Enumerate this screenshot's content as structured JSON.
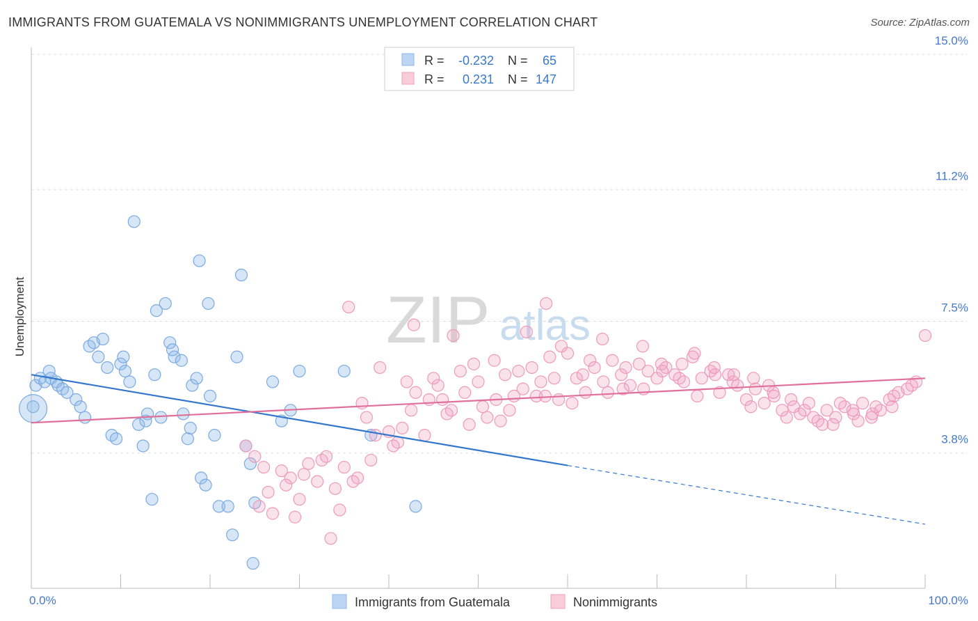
{
  "title": "IMMIGRANTS FROM GUATEMALA VS NONIMMIGRANTS UNEMPLOYMENT CORRELATION CHART",
  "source": "Source: ZipAtlas.com",
  "watermark": {
    "zip": "ZIP",
    "atlas": "atlas"
  },
  "colors": {
    "blue": "#8db8e8",
    "blue_line": "#3377cc",
    "pink": "#f0a0bc",
    "pink_line": "#e0709a",
    "axis_label": "#4477cc",
    "grid": "#dddddd"
  },
  "chart_data": {
    "type": "scatter",
    "xlabel": "",
    "ylabel": "Unemployment",
    "xlim": [
      0,
      100
    ],
    "ylim": [
      0,
      15
    ],
    "x_tick_labels": [
      "0.0%",
      "100.0%"
    ],
    "y_ticks": [
      {
        "value": 3.8,
        "label": "3.8%"
      },
      {
        "value": 7.5,
        "label": "7.5%"
      },
      {
        "value": 11.2,
        "label": "11.2%"
      },
      {
        "value": 15.0,
        "label": "15.0%"
      }
    ],
    "grid": true,
    "legend_position": "bottom",
    "stats_box": {
      "rows": [
        {
          "r_label": "R =",
          "r_value": "-0.232",
          "n_label": "N =",
          "n_value": "65"
        },
        {
          "r_label": "R =",
          "r_value": "0.231",
          "n_label": "N =",
          "n_value": "147"
        }
      ]
    },
    "series": [
      {
        "name": "Immigrants from Guatemala",
        "color": "#8db8e8",
        "trend": {
          "x0": 0,
          "y0": 6.0,
          "x1": 60,
          "y1": 3.45,
          "dashed_to_x": 100,
          "dashed_to_y": 1.8
        },
        "points": [
          [
            0.2,
            5.1
          ],
          [
            0.5,
            5.7
          ],
          [
            1,
            5.9
          ],
          [
            1.5,
            5.8
          ],
          [
            2,
            6.1
          ],
          [
            2.2,
            5.9
          ],
          [
            2.8,
            5.8
          ],
          [
            3,
            5.7
          ],
          [
            3.5,
            5.6
          ],
          [
            4,
            5.5
          ],
          [
            5,
            5.3
          ],
          [
            5.5,
            5.1
          ],
          [
            6,
            4.8
          ],
          [
            6.5,
            6.8
          ],
          [
            7,
            6.9
          ],
          [
            7.5,
            6.5
          ],
          [
            8,
            7.0
          ],
          [
            8.5,
            6.2
          ],
          [
            9,
            4.3
          ],
          [
            9.5,
            4.2
          ],
          [
            10,
            6.3
          ],
          [
            10.5,
            6.1
          ],
          [
            11,
            5.8
          ],
          [
            12,
            4.6
          ],
          [
            12.5,
            4.0
          ],
          [
            13,
            4.9
          ],
          [
            13.5,
            2.5
          ],
          [
            14,
            7.8
          ],
          [
            15,
            8.0
          ],
          [
            15.5,
            6.9
          ],
          [
            16,
            6.5
          ],
          [
            17,
            4.9
          ],
          [
            17.5,
            4.2
          ],
          [
            18,
            5.7
          ],
          [
            18.5,
            5.9
          ],
          [
            19,
            3.1
          ],
          [
            19.5,
            2.9
          ],
          [
            20,
            5.4
          ],
          [
            20.5,
            4.3
          ],
          [
            21,
            2.3
          ],
          [
            22,
            2.3
          ],
          [
            23,
            6.5
          ],
          [
            23.5,
            8.8
          ],
          [
            24,
            4.0
          ],
          [
            24.5,
            3.5
          ],
          [
            25,
            2.4
          ],
          [
            27,
            5.8
          ],
          [
            28,
            4.7
          ],
          [
            29,
            5.0
          ],
          [
            30,
            6.1
          ],
          [
            10.3,
            6.5
          ],
          [
            11.5,
            10.3
          ],
          [
            12.8,
            4.7
          ],
          [
            13.8,
            6.0
          ],
          [
            14.5,
            4.8
          ],
          [
            15.8,
            6.7
          ],
          [
            16.8,
            6.4
          ],
          [
            17.8,
            4.5
          ],
          [
            18.8,
            9.2
          ],
          [
            19.8,
            8.0
          ],
          [
            22.5,
            1.5
          ],
          [
            24.8,
            0.7
          ],
          [
            35,
            6.1
          ],
          [
            38,
            4.3
          ],
          [
            43,
            2.3
          ]
        ]
      },
      {
        "name": "Nonimmigrants",
        "color": "#f0a0bc",
        "trend": {
          "x0": 0,
          "y0": 4.65,
          "x1": 100,
          "y1": 5.9
        },
        "points": [
          [
            24,
            4.0
          ],
          [
            25,
            3.7
          ],
          [
            26,
            3.4
          ],
          [
            27,
            2.1
          ],
          [
            28,
            3.3
          ],
          [
            29,
            3.1
          ],
          [
            30,
            2.5
          ],
          [
            31,
            3.5
          ],
          [
            32,
            3.0
          ],
          [
            33,
            3.7
          ],
          [
            34,
            2.8
          ],
          [
            35,
            3.4
          ],
          [
            36,
            3.0
          ],
          [
            37,
            5.2
          ],
          [
            38,
            3.6
          ],
          [
            39,
            6.2
          ],
          [
            40,
            4.4
          ],
          [
            41,
            4.1
          ],
          [
            42,
            5.8
          ],
          [
            43,
            5.5
          ],
          [
            44,
            4.3
          ],
          [
            45,
            5.9
          ],
          [
            46,
            5.3
          ],
          [
            47,
            5.0
          ],
          [
            48,
            6.1
          ],
          [
            49,
            4.6
          ],
          [
            50,
            5.8
          ],
          [
            51,
            4.8
          ],
          [
            52,
            5.3
          ],
          [
            53,
            6.0
          ],
          [
            54,
            5.4
          ],
          [
            55,
            5.6
          ],
          [
            56,
            6.2
          ],
          [
            57,
            5.8
          ],
          [
            58,
            6.5
          ],
          [
            59,
            5.3
          ],
          [
            60,
            6.6
          ],
          [
            61,
            5.9
          ],
          [
            62,
            5.5
          ],
          [
            63,
            6.2
          ],
          [
            64,
            5.8
          ],
          [
            65,
            6.4
          ],
          [
            66,
            6.0
          ],
          [
            67,
            5.7
          ],
          [
            68,
            6.3
          ],
          [
            69,
            6.1
          ],
          [
            70,
            5.9
          ],
          [
            71,
            6.2
          ],
          [
            72,
            6.0
          ],
          [
            73,
            5.8
          ],
          [
            74,
            6.5
          ],
          [
            75,
            5.9
          ],
          [
            76,
            6.1
          ],
          [
            77,
            5.5
          ],
          [
            78,
            6.0
          ],
          [
            79,
            5.7
          ],
          [
            80,
            5.3
          ],
          [
            81,
            5.6
          ],
          [
            82,
            5.2
          ],
          [
            83,
            5.5
          ],
          [
            84,
            5.0
          ],
          [
            85,
            5.3
          ],
          [
            86,
            4.9
          ],
          [
            87,
            5.2
          ],
          [
            88,
            4.7
          ],
          [
            89,
            5.0
          ],
          [
            90,
            4.8
          ],
          [
            91,
            5.1
          ],
          [
            92,
            4.9
          ],
          [
            93,
            5.2
          ],
          [
            94,
            4.8
          ],
          [
            95,
            5.0
          ],
          [
            96,
            5.3
          ],
          [
            97,
            5.5
          ],
          [
            98,
            5.6
          ],
          [
            99,
            5.8
          ],
          [
            100,
            7.1
          ],
          [
            26.5,
            2.7
          ],
          [
            28.5,
            2.9
          ],
          [
            30.5,
            3.2
          ],
          [
            32.5,
            3.6
          ],
          [
            34.5,
            2.2
          ],
          [
            36.5,
            3.1
          ],
          [
            38.5,
            4.3
          ],
          [
            40.5,
            4.0
          ],
          [
            42.5,
            5.0
          ],
          [
            44.5,
            5.3
          ],
          [
            46.5,
            4.9
          ],
          [
            48.5,
            5.5
          ],
          [
            50.5,
            5.1
          ],
          [
            52.5,
            4.7
          ],
          [
            54.5,
            6.1
          ],
          [
            56.5,
            5.4
          ],
          [
            58.5,
            5.9
          ],
          [
            60.5,
            5.2
          ],
          [
            62.5,
            6.4
          ],
          [
            64.5,
            5.5
          ],
          [
            66.5,
            6.2
          ],
          [
            68.5,
            5.6
          ],
          [
            70.5,
            6.3
          ],
          [
            72.5,
            5.9
          ],
          [
            74.5,
            5.4
          ],
          [
            76.5,
            6.0
          ],
          [
            78.5,
            5.8
          ],
          [
            80.5,
            5.1
          ],
          [
            82.5,
            5.7
          ],
          [
            84.5,
            4.8
          ],
          [
            86.5,
            5.0
          ],
          [
            88.5,
            4.6
          ],
          [
            90.5,
            5.2
          ],
          [
            92.5,
            4.7
          ],
          [
            94.5,
            5.1
          ],
          [
            96.5,
            5.4
          ],
          [
            98.5,
            5.7
          ],
          [
            35.5,
            7.9
          ],
          [
            42.8,
            7.4
          ],
          [
            47.2,
            7.1
          ],
          [
            51.8,
            6.4
          ],
          [
            55.4,
            7.2
          ],
          [
            57.6,
            8.0
          ],
          [
            59.3,
            6.8
          ],
          [
            61.7,
            6.0
          ],
          [
            63.9,
            7.0
          ],
          [
            66.2,
            5.6
          ],
          [
            68.4,
            6.8
          ],
          [
            70.6,
            6.1
          ],
          [
            72.8,
            6.3
          ],
          [
            74.2,
            6.6
          ],
          [
            76.4,
            6.2
          ],
          [
            78.6,
            6.0
          ],
          [
            80.8,
            5.9
          ],
          [
            83.1,
            5.4
          ],
          [
            85.3,
            5.1
          ],
          [
            87.5,
            4.8
          ],
          [
            89.7,
            4.6
          ],
          [
            91.9,
            5.0
          ],
          [
            94.1,
            4.9
          ],
          [
            96.3,
            5.1
          ],
          [
            25.5,
            2.3
          ],
          [
            29.5,
            2.0
          ],
          [
            33.5,
            1.4
          ],
          [
            37.5,
            4.8
          ],
          [
            41.5,
            4.5
          ],
          [
            45.5,
            5.7
          ],
          [
            49.5,
            6.3
          ],
          [
            53.5,
            5.0
          ],
          [
            57.5,
            5.4
          ]
        ]
      }
    ]
  }
}
